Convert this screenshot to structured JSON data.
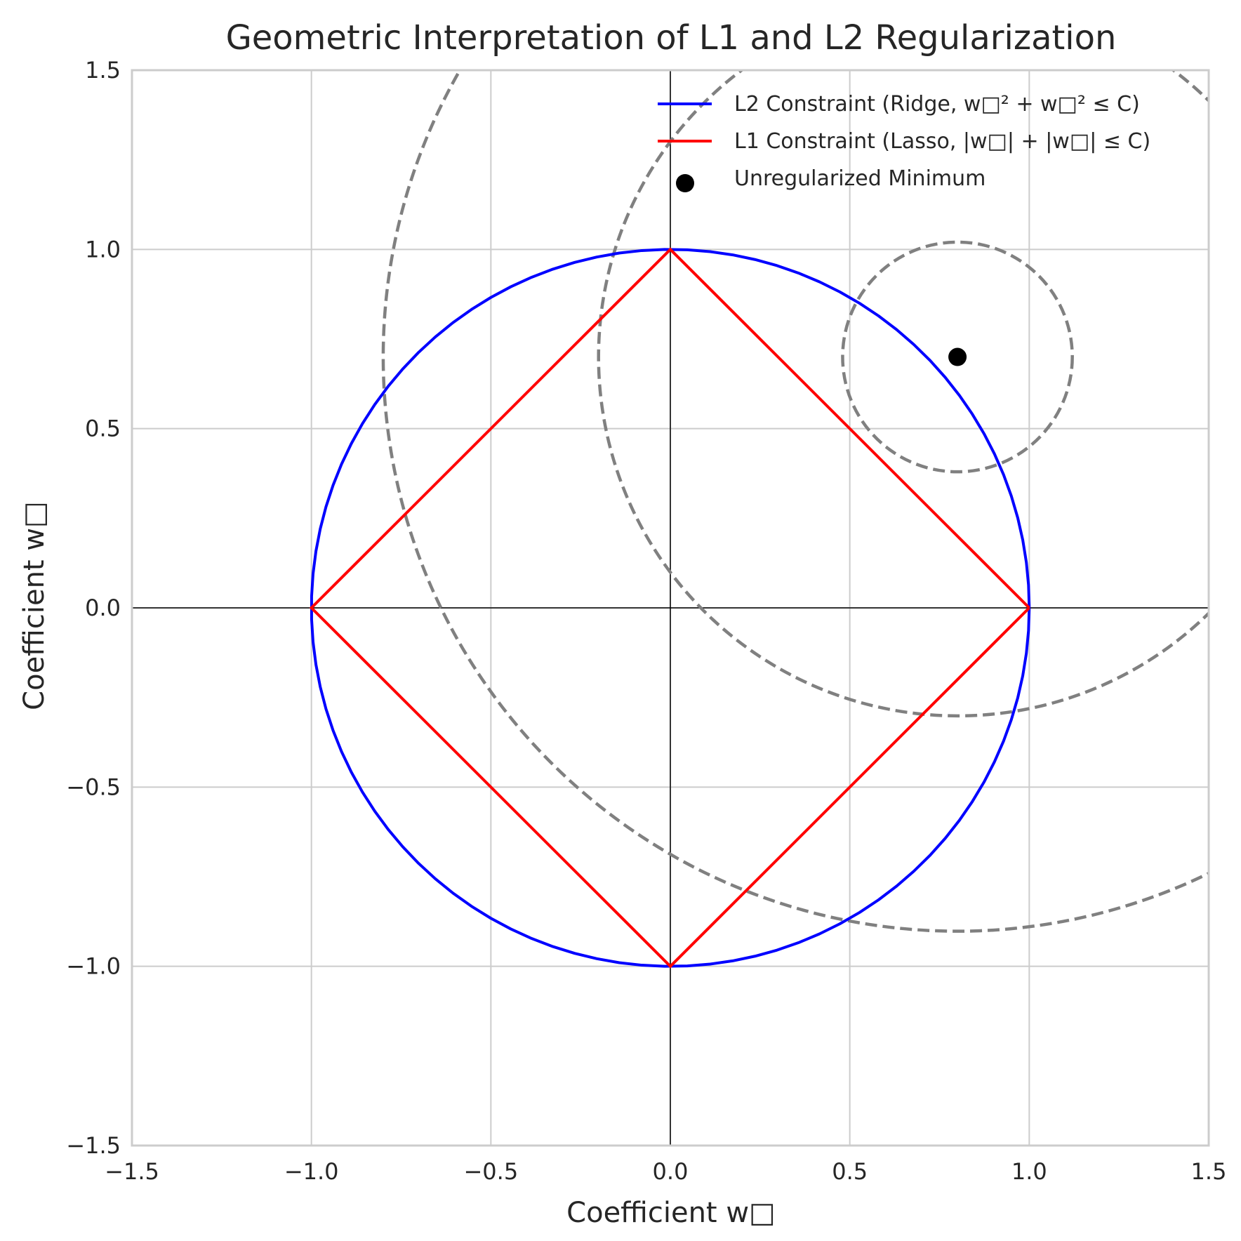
{
  "chart_data": {
    "type": "line",
    "title": "Geometric Interpretation of L1 and L2 Regularization",
    "xlabel": "Coefficient w□",
    "ylabel": "Coefficient w□",
    "xlim": [
      -1.5,
      1.5
    ],
    "ylim": [
      -1.5,
      1.5
    ],
    "xticks": [
      -1.5,
      -1.0,
      -0.5,
      0.0,
      0.5,
      1.0,
      1.5
    ],
    "yticks": [
      -1.5,
      -1.0,
      -0.5,
      0.0,
      0.5,
      1.0,
      1.5
    ],
    "xtick_labels": [
      "−1.5",
      "−1.0",
      "−0.5",
      "0.0",
      "0.5",
      "1.0",
      "1.5"
    ],
    "ytick_labels": [
      "−1.5",
      "−1.0",
      "−0.5",
      "0.0",
      "0.5",
      "1.0",
      "1.5"
    ],
    "grid": true,
    "legend_position": "top-right",
    "colors": {
      "l2": "#0000ff",
      "l1": "#ff0000",
      "point": "#000000",
      "contour": "#808080",
      "grid": "#cccccc",
      "spine": "#cccccc",
      "axis_zero": "#000000"
    },
    "series": [
      {
        "name": "L2 Constraint (Ridge, w□² + w□² ≤ C)",
        "kind": "circle",
        "center": [
          0,
          0
        ],
        "radius": 1.0,
        "color": "#0000ff"
      },
      {
        "name": "L1 Constraint (Lasso, |w□| + |w□| ≤ C)",
        "kind": "polyline",
        "x": [
          1,
          0,
          -1,
          0,
          1
        ],
        "y": [
          0,
          1,
          0,
          -1,
          0
        ],
        "color": "#ff0000"
      },
      {
        "name": "Unregularized Minimum",
        "kind": "scatter",
        "x": [
          0.8
        ],
        "y": [
          0.7
        ],
        "color": "#000000"
      }
    ],
    "contours": {
      "center": [
        0.8,
        0.7
      ],
      "radii": [
        0.32,
        1.0,
        1.6
      ],
      "style": "dashed",
      "color": "#808080"
    }
  }
}
